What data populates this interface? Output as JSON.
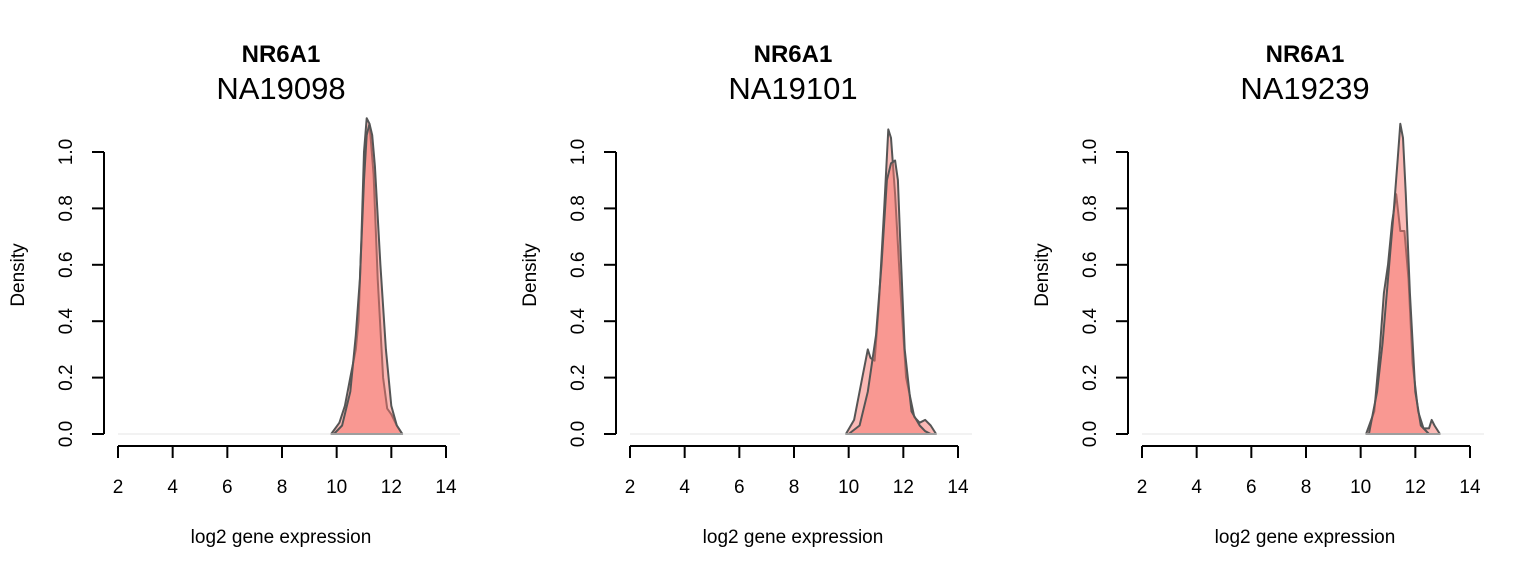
{
  "chart_data": [
    {
      "type": "area",
      "title": "NR6A1",
      "subtitle": "NA19098",
      "xlabel": "log2 gene expression",
      "ylabel": "Density",
      "xlim": [
        2,
        14
      ],
      "ylim": [
        0,
        1.0
      ],
      "x_ticks": [
        2,
        4,
        6,
        8,
        10,
        12,
        14
      ],
      "y_ticks": [
        0.0,
        0.2,
        0.4,
        0.6,
        0.8,
        1.0
      ],
      "grid": false,
      "legend": "none",
      "fill_color": "#F8766D",
      "stroke_color": "#555555",
      "series": [
        {
          "x": [
            9.8,
            10.1,
            10.3,
            10.5,
            10.7,
            10.8,
            10.9,
            11.0,
            11.1,
            11.2,
            11.35,
            11.5,
            11.7,
            11.85,
            12.0,
            12.2,
            12.4
          ],
          "values": [
            0.0,
            0.04,
            0.1,
            0.2,
            0.3,
            0.4,
            0.68,
            1.0,
            1.12,
            1.1,
            0.92,
            0.55,
            0.2,
            0.09,
            0.07,
            0.03,
            0.0
          ]
        },
        {
          "x": [
            9.9,
            10.2,
            10.5,
            10.7,
            10.85,
            11.0,
            11.1,
            11.2,
            11.3,
            11.4,
            11.6,
            11.8,
            12.0,
            12.2,
            12.4
          ],
          "values": [
            0.0,
            0.03,
            0.15,
            0.35,
            0.55,
            0.9,
            1.06,
            1.1,
            1.06,
            0.95,
            0.6,
            0.3,
            0.1,
            0.03,
            0.0
          ]
        }
      ]
    },
    {
      "type": "area",
      "title": "NR6A1",
      "subtitle": "NA19101",
      "xlabel": "log2 gene expression",
      "ylabel": "Density",
      "xlim": [
        2,
        14
      ],
      "ylim": [
        0,
        1.0
      ],
      "x_ticks": [
        2,
        4,
        6,
        8,
        10,
        12,
        14
      ],
      "y_ticks": [
        0.0,
        0.2,
        0.4,
        0.6,
        0.8,
        1.0
      ],
      "grid": false,
      "legend": "none",
      "fill_color": "#F8766D",
      "stroke_color": "#555555",
      "series": [
        {
          "x": [
            9.9,
            10.2,
            10.5,
            10.7,
            10.8,
            10.95,
            11.1,
            11.3,
            11.45,
            11.55,
            11.7,
            11.9,
            12.1,
            12.4,
            12.6,
            12.8,
            13.0,
            13.2
          ],
          "values": [
            0.0,
            0.05,
            0.2,
            0.3,
            0.27,
            0.26,
            0.45,
            0.8,
            1.08,
            1.05,
            0.85,
            0.5,
            0.2,
            0.06,
            0.04,
            0.05,
            0.03,
            0.0
          ]
        },
        {
          "x": [
            10.0,
            10.4,
            10.7,
            11.0,
            11.2,
            11.4,
            11.55,
            11.7,
            11.8,
            11.9,
            12.05,
            12.3,
            12.6,
            12.8,
            13.0
          ],
          "values": [
            0.0,
            0.03,
            0.15,
            0.35,
            0.6,
            0.9,
            0.96,
            0.97,
            0.9,
            0.65,
            0.3,
            0.08,
            0.03,
            0.01,
            0.0
          ]
        }
      ]
    },
    {
      "type": "area",
      "title": "NR6A1",
      "subtitle": "NA19239",
      "xlabel": "log2 gene expression",
      "ylabel": "Density",
      "xlim": [
        2,
        14
      ],
      "ylim": [
        0,
        1.0
      ],
      "x_ticks": [
        2,
        4,
        6,
        8,
        10,
        12,
        14
      ],
      "y_ticks": [
        0.0,
        0.2,
        0.4,
        0.6,
        0.8,
        1.0
      ],
      "grid": false,
      "legend": "none",
      "fill_color": "#F8766D",
      "stroke_color": "#555555",
      "series": [
        {
          "x": [
            10.2,
            10.5,
            10.7,
            10.85,
            11.0,
            11.15,
            11.3,
            11.45,
            11.6,
            11.75,
            11.9,
            12.1,
            12.3,
            12.5,
            12.6,
            12.7,
            12.9
          ],
          "values": [
            0.0,
            0.08,
            0.3,
            0.5,
            0.6,
            0.75,
            0.85,
            0.72,
            0.72,
            0.55,
            0.25,
            0.08,
            0.02,
            0.02,
            0.05,
            0.03,
            0.0
          ]
        },
        {
          "x": [
            10.3,
            10.6,
            10.8,
            11.0,
            11.2,
            11.35,
            11.45,
            11.55,
            11.65,
            11.8,
            12.0,
            12.2,
            12.5
          ],
          "values": [
            0.0,
            0.15,
            0.32,
            0.55,
            0.78,
            0.97,
            1.1,
            1.05,
            0.85,
            0.5,
            0.15,
            0.03,
            0.0
          ]
        }
      ]
    }
  ]
}
